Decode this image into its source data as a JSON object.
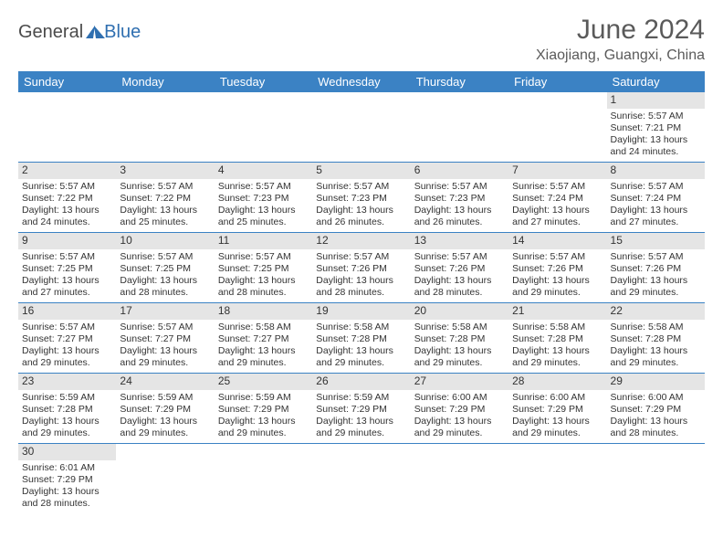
{
  "logo": {
    "part1": "General",
    "part2": "Blue"
  },
  "title": "June 2024",
  "location": "Xiaojiang, Guangxi, China",
  "colors": {
    "header_bg": "#3b82c4",
    "header_text": "#ffffff",
    "daynum_bg": "#e5e5e5",
    "cell_border": "#3b82c4",
    "title_color": "#5a5a5a",
    "body_text": "#333333",
    "logo_gray": "#4a4a4a",
    "logo_blue": "#2f6fb0"
  },
  "fonts": {
    "title_pt": 30,
    "location_pt": 16,
    "weekday_pt": 13,
    "daynum_pt": 12,
    "details_pt": 10.5
  },
  "weekdays": [
    "Sunday",
    "Monday",
    "Tuesday",
    "Wednesday",
    "Thursday",
    "Friday",
    "Saturday"
  ],
  "weeks": [
    [
      null,
      null,
      null,
      null,
      null,
      null,
      {
        "n": "1",
        "sr": "Sunrise: 5:57 AM",
        "ss": "Sunset: 7:21 PM",
        "d1": "Daylight: 13 hours",
        "d2": "and 24 minutes."
      }
    ],
    [
      {
        "n": "2",
        "sr": "Sunrise: 5:57 AM",
        "ss": "Sunset: 7:22 PM",
        "d1": "Daylight: 13 hours",
        "d2": "and 24 minutes."
      },
      {
        "n": "3",
        "sr": "Sunrise: 5:57 AM",
        "ss": "Sunset: 7:22 PM",
        "d1": "Daylight: 13 hours",
        "d2": "and 25 minutes."
      },
      {
        "n": "4",
        "sr": "Sunrise: 5:57 AM",
        "ss": "Sunset: 7:23 PM",
        "d1": "Daylight: 13 hours",
        "d2": "and 25 minutes."
      },
      {
        "n": "5",
        "sr": "Sunrise: 5:57 AM",
        "ss": "Sunset: 7:23 PM",
        "d1": "Daylight: 13 hours",
        "d2": "and 26 minutes."
      },
      {
        "n": "6",
        "sr": "Sunrise: 5:57 AM",
        "ss": "Sunset: 7:23 PM",
        "d1": "Daylight: 13 hours",
        "d2": "and 26 minutes."
      },
      {
        "n": "7",
        "sr": "Sunrise: 5:57 AM",
        "ss": "Sunset: 7:24 PM",
        "d1": "Daylight: 13 hours",
        "d2": "and 27 minutes."
      },
      {
        "n": "8",
        "sr": "Sunrise: 5:57 AM",
        "ss": "Sunset: 7:24 PM",
        "d1": "Daylight: 13 hours",
        "d2": "and 27 minutes."
      }
    ],
    [
      {
        "n": "9",
        "sr": "Sunrise: 5:57 AM",
        "ss": "Sunset: 7:25 PM",
        "d1": "Daylight: 13 hours",
        "d2": "and 27 minutes."
      },
      {
        "n": "10",
        "sr": "Sunrise: 5:57 AM",
        "ss": "Sunset: 7:25 PM",
        "d1": "Daylight: 13 hours",
        "d2": "and 28 minutes."
      },
      {
        "n": "11",
        "sr": "Sunrise: 5:57 AM",
        "ss": "Sunset: 7:25 PM",
        "d1": "Daylight: 13 hours",
        "d2": "and 28 minutes."
      },
      {
        "n": "12",
        "sr": "Sunrise: 5:57 AM",
        "ss": "Sunset: 7:26 PM",
        "d1": "Daylight: 13 hours",
        "d2": "and 28 minutes."
      },
      {
        "n": "13",
        "sr": "Sunrise: 5:57 AM",
        "ss": "Sunset: 7:26 PM",
        "d1": "Daylight: 13 hours",
        "d2": "and 28 minutes."
      },
      {
        "n": "14",
        "sr": "Sunrise: 5:57 AM",
        "ss": "Sunset: 7:26 PM",
        "d1": "Daylight: 13 hours",
        "d2": "and 29 minutes."
      },
      {
        "n": "15",
        "sr": "Sunrise: 5:57 AM",
        "ss": "Sunset: 7:26 PM",
        "d1": "Daylight: 13 hours",
        "d2": "and 29 minutes."
      }
    ],
    [
      {
        "n": "16",
        "sr": "Sunrise: 5:57 AM",
        "ss": "Sunset: 7:27 PM",
        "d1": "Daylight: 13 hours",
        "d2": "and 29 minutes."
      },
      {
        "n": "17",
        "sr": "Sunrise: 5:57 AM",
        "ss": "Sunset: 7:27 PM",
        "d1": "Daylight: 13 hours",
        "d2": "and 29 minutes."
      },
      {
        "n": "18",
        "sr": "Sunrise: 5:58 AM",
        "ss": "Sunset: 7:27 PM",
        "d1": "Daylight: 13 hours",
        "d2": "and 29 minutes."
      },
      {
        "n": "19",
        "sr": "Sunrise: 5:58 AM",
        "ss": "Sunset: 7:28 PM",
        "d1": "Daylight: 13 hours",
        "d2": "and 29 minutes."
      },
      {
        "n": "20",
        "sr": "Sunrise: 5:58 AM",
        "ss": "Sunset: 7:28 PM",
        "d1": "Daylight: 13 hours",
        "d2": "and 29 minutes."
      },
      {
        "n": "21",
        "sr": "Sunrise: 5:58 AM",
        "ss": "Sunset: 7:28 PM",
        "d1": "Daylight: 13 hours",
        "d2": "and 29 minutes."
      },
      {
        "n": "22",
        "sr": "Sunrise: 5:58 AM",
        "ss": "Sunset: 7:28 PM",
        "d1": "Daylight: 13 hours",
        "d2": "and 29 minutes."
      }
    ],
    [
      {
        "n": "23",
        "sr": "Sunrise: 5:59 AM",
        "ss": "Sunset: 7:28 PM",
        "d1": "Daylight: 13 hours",
        "d2": "and 29 minutes."
      },
      {
        "n": "24",
        "sr": "Sunrise: 5:59 AM",
        "ss": "Sunset: 7:29 PM",
        "d1": "Daylight: 13 hours",
        "d2": "and 29 minutes."
      },
      {
        "n": "25",
        "sr": "Sunrise: 5:59 AM",
        "ss": "Sunset: 7:29 PM",
        "d1": "Daylight: 13 hours",
        "d2": "and 29 minutes."
      },
      {
        "n": "26",
        "sr": "Sunrise: 5:59 AM",
        "ss": "Sunset: 7:29 PM",
        "d1": "Daylight: 13 hours",
        "d2": "and 29 minutes."
      },
      {
        "n": "27",
        "sr": "Sunrise: 6:00 AM",
        "ss": "Sunset: 7:29 PM",
        "d1": "Daylight: 13 hours",
        "d2": "and 29 minutes."
      },
      {
        "n": "28",
        "sr": "Sunrise: 6:00 AM",
        "ss": "Sunset: 7:29 PM",
        "d1": "Daylight: 13 hours",
        "d2": "and 29 minutes."
      },
      {
        "n": "29",
        "sr": "Sunrise: 6:00 AM",
        "ss": "Sunset: 7:29 PM",
        "d1": "Daylight: 13 hours",
        "d2": "and 28 minutes."
      }
    ],
    [
      {
        "n": "30",
        "sr": "Sunrise: 6:01 AM",
        "ss": "Sunset: 7:29 PM",
        "d1": "Daylight: 13 hours",
        "d2": "and 28 minutes."
      },
      null,
      null,
      null,
      null,
      null,
      null
    ]
  ]
}
